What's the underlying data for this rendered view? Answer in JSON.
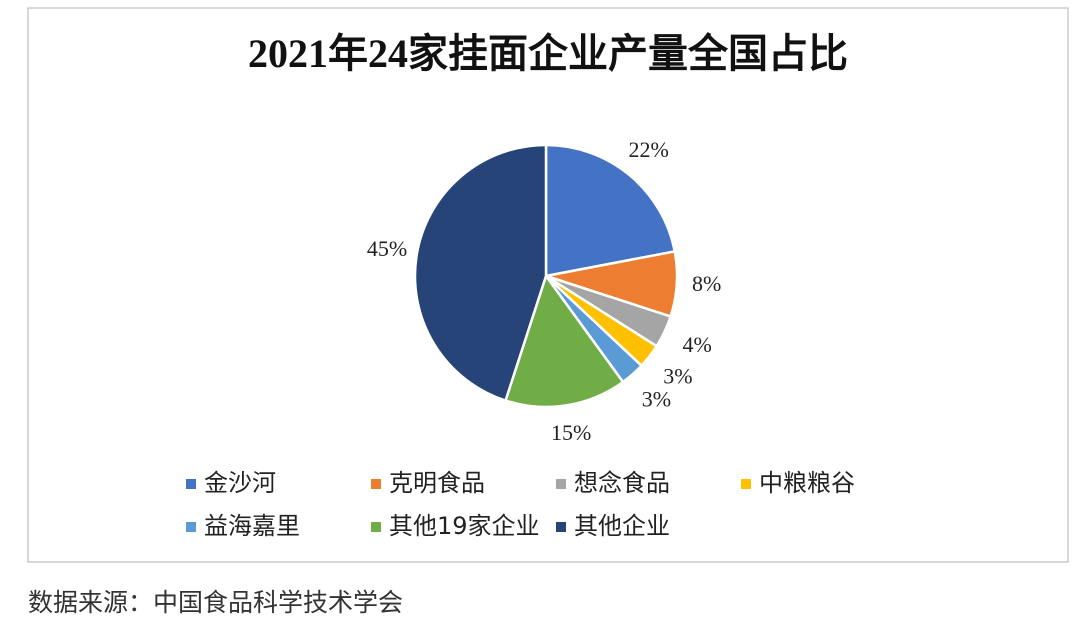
{
  "chart_data": {
    "type": "pie",
    "title": "2021年24家挂面企业产量全国占比",
    "categories": [
      "金沙河",
      "克明食品",
      "想念食品",
      "中粮粮谷",
      "益海嘉里",
      "其他19家企业",
      "其他企业"
    ],
    "values": [
      22,
      8,
      4,
      3,
      3,
      15,
      45
    ],
    "value_labels": [
      "22%",
      "8%",
      "4%",
      "3%",
      "3%",
      "15%",
      "45%"
    ],
    "colors": [
      "#4472c4",
      "#ed7d31",
      "#a5a5a5",
      "#ffc000",
      "#5b9bd5",
      "#70ad47",
      "#264478"
    ],
    "legend": "bottom"
  },
  "source": "数据来源：中国食品科学技术学会"
}
